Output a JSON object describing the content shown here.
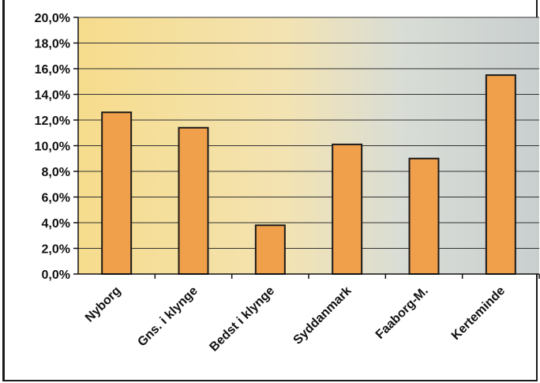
{
  "chart_data": {
    "type": "bar",
    "categories": [
      "Nyborg",
      "Gns. i klynge",
      "Bedst i klynge",
      "Syddanmark",
      "Faaborg-M.",
      "Kerteminde"
    ],
    "values": [
      12.6,
      11.4,
      3.8,
      10.1,
      9.0,
      15.5
    ],
    "ylim": [
      0,
      20
    ],
    "yticks": [
      0,
      2,
      4,
      6,
      8,
      10,
      12,
      14,
      16,
      18,
      20
    ],
    "ytick_labels": [
      "0,0%",
      "2,0%",
      "4,0%",
      "6,0%",
      "8,0%",
      "10,0%",
      "12,0%",
      "14,0%",
      "16,0%",
      "18,0%",
      "20,0%"
    ],
    "title": "",
    "xlabel": "",
    "ylabel": "",
    "grid": true,
    "legend": "none",
    "colors": {
      "bar_fill": "#f0a04b",
      "bar_stroke": "#1a1a1a",
      "plot_bg_left": "#f6dc8c",
      "plot_bg_right": "#c9cfcf",
      "grid": "#333333"
    }
  }
}
